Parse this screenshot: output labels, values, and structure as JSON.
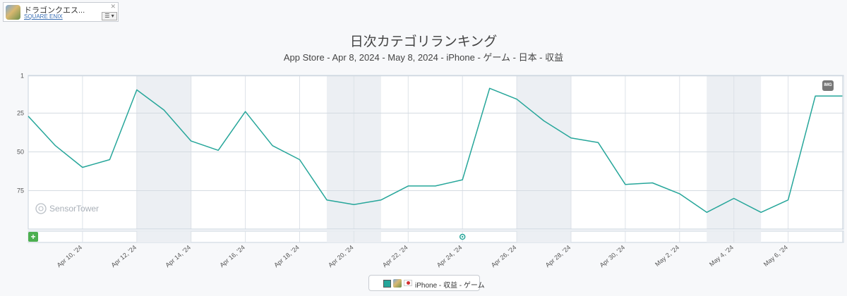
{
  "app": {
    "name": "ドラゴンクエス...",
    "publisher": "SQUARE ENIX",
    "close": "✕",
    "menu": "☰ ▾",
    "apple_icon_glyph": "",
    "icon": "app-icon"
  },
  "toolbar": {
    "img_label": "IMG",
    "add_label": "+"
  },
  "watermark": "SensorTower",
  "chart_data": {
    "type": "line",
    "title": "日次カテゴリランキング",
    "subtitle": "App Store - Apr 8, 2024 - May 8, 2024 - iPhone - ゲーム - 日本 - 収益",
    "y_reversed": true,
    "ylim": [
      1,
      100
    ],
    "y_ticks": [
      1,
      25,
      50,
      75
    ],
    "x_start": "Apr 8, 2024",
    "x_end": "May 8, 2024",
    "x_tick_labels": [
      "Apr 10, '24",
      "Apr 12, '24",
      "Apr 14, '24",
      "Apr 16, '24",
      "Apr 18, '24",
      "Apr 20, '24",
      "Apr 22, '24",
      "Apr 24, '24",
      "Apr 26, '24",
      "Apr 28, '24",
      "Apr 30, '24",
      "May 2, '24",
      "May 4, '24",
      "May 6, '24"
    ],
    "weekend_bands": [
      [
        "Apr 12",
        "Apr 14"
      ],
      [
        "Apr 19",
        "Apr 21"
      ],
      [
        "Apr 26",
        "Apr 28"
      ],
      [
        "May 3",
        "May 5"
      ]
    ],
    "grid": true,
    "legend_position": "bottom-center",
    "series": [
      {
        "name": "iPhone - 収益 - ゲーム",
        "color": "#26a69a",
        "x": [
          "Apr 8",
          "Apr 9",
          "Apr 10",
          "Apr 11",
          "Apr 12",
          "Apr 13",
          "Apr 14",
          "Apr 15",
          "Apr 16",
          "Apr 17",
          "Apr 18",
          "Apr 19",
          "Apr 20",
          "Apr 21",
          "Apr 22",
          "Apr 23",
          "Apr 24",
          "Apr 25",
          "Apr 26",
          "Apr 27",
          "Apr 28",
          "Apr 29",
          "Apr 30",
          "May 1",
          "May 2",
          "May 3",
          "May 4",
          "May 5",
          "May 6",
          "May 7",
          "May 8"
        ],
        "values": [
          27,
          46,
          60,
          55,
          10,
          23,
          43,
          49,
          24,
          46,
          55,
          81,
          84,
          81,
          72,
          72,
          68,
          9,
          16,
          30,
          41,
          44,
          71,
          70,
          77,
          89,
          80,
          89,
          81,
          14,
          14
        ]
      }
    ]
  }
}
